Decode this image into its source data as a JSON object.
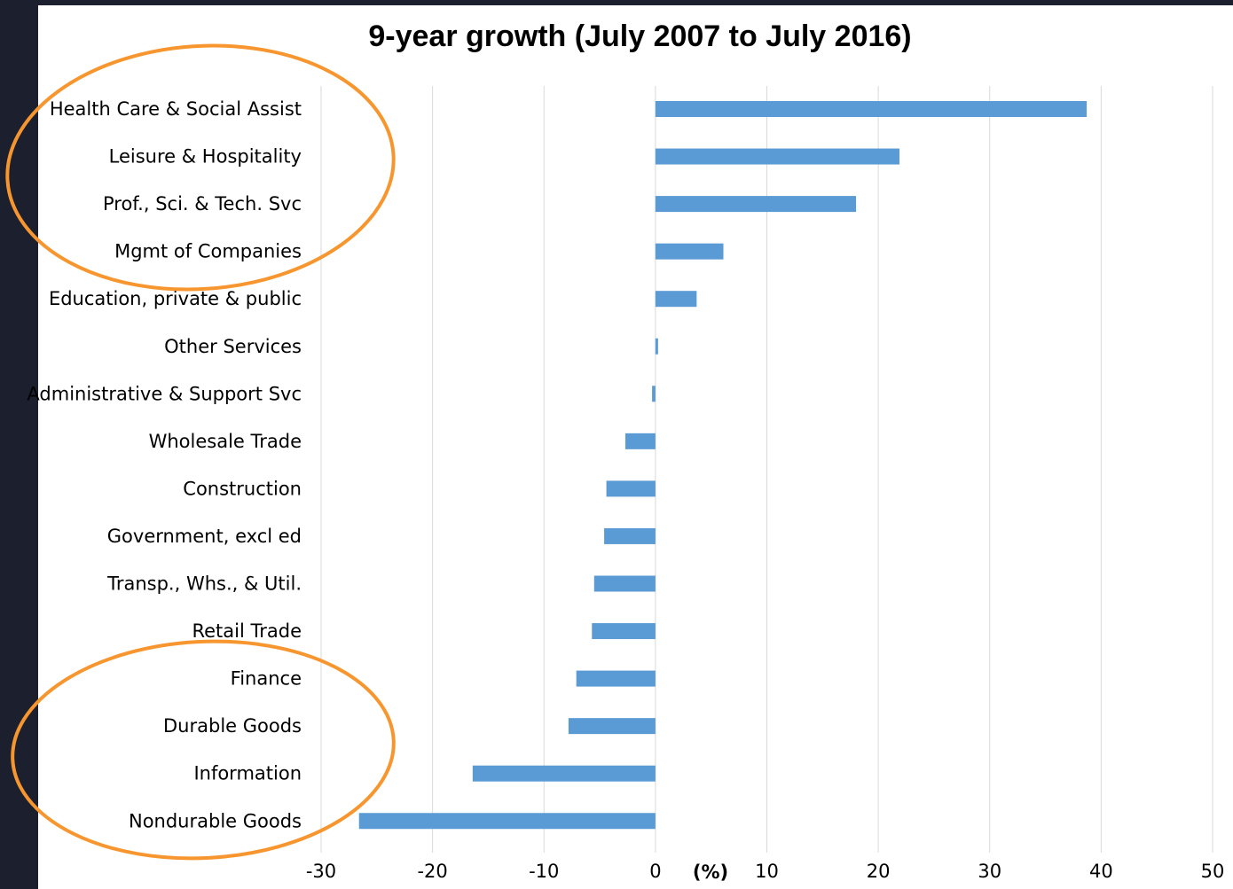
{
  "chart_data": {
    "type": "bar",
    "orientation": "horizontal",
    "title": "9-year growth (July 2007 to July 2016)",
    "xlabel": "(%)",
    "ylabel": "",
    "xlim": [
      -30,
      50
    ],
    "x_ticks": [
      "-30",
      "-20",
      "-10",
      "0",
      "10",
      "20",
      "30",
      "40",
      "50"
    ],
    "grid": true,
    "categories": [
      "Health Care & Social Assist",
      "Leisure & Hospitality",
      "Prof., Sci. & Tech. Svc",
      "Mgmt of Companies",
      "Education, private & public",
      "Other Services",
      "Administrative & Support Svc",
      "Wholesale Trade",
      "Construction",
      "Government, excl ed",
      "Transp., Whs., & Util.",
      "Retail Trade",
      "Finance",
      "Durable Goods",
      "Information",
      "Nondurable Goods"
    ],
    "values": [
      38.7,
      21.9,
      18.0,
      6.1,
      3.7,
      0.2,
      -0.3,
      -2.7,
      -4.4,
      -4.6,
      -5.5,
      -5.7,
      -7.1,
      -7.8,
      -16.4,
      -26.6
    ],
    "bar_color": "#5b9bd5",
    "annotation_color": "#f7962f",
    "annotations": [
      {
        "shape": "ellipse",
        "encircles": [
          "Health Care & Social Assist",
          "Leisure & Hospitality",
          "Prof., Sci. & Tech. Svc",
          "Mgmt of Companies"
        ]
      },
      {
        "shape": "ellipse",
        "encircles": [
          "Finance",
          "Durable Goods",
          "Information",
          "Nondurable Goods"
        ]
      }
    ]
  }
}
